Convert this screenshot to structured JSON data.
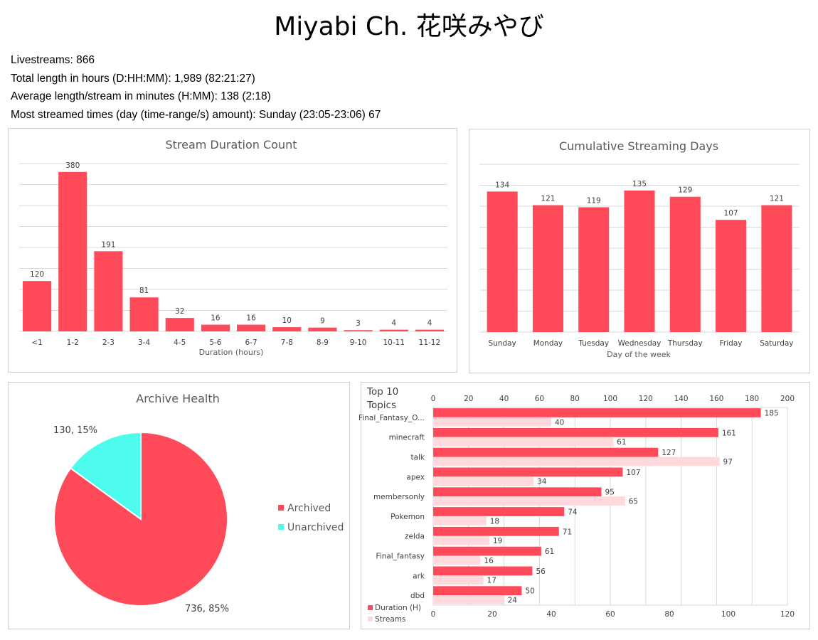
{
  "header": {
    "title": "Miyabi Ch. 花咲みやび"
  },
  "stats": [
    "Livestreams: 866",
    "Total length in hours (D:HH:MM): 1,989 (82:21:27)",
    "Average length/stream in minutes (H:MM): 138 (2:18)",
    "Most streamed times (day (time-range/s) amount): Sunday (23:05-23:06) 67"
  ],
  "colors": {
    "primary": "#ff4a5a",
    "light": "#ffd9dc",
    "cyan": "#4dfcec",
    "grid": "#d9d9d9"
  },
  "chart_data": [
    {
      "type": "bar",
      "title": "Stream Duration Count",
      "xlabel": "Duration (hours)",
      "ylabel": "",
      "categories": [
        "<1",
        "1-2",
        "2-3",
        "3-4",
        "4-5",
        "5-6",
        "6-7",
        "7-8",
        "8-9",
        "9-10",
        "10-11",
        "11-12"
      ],
      "values": [
        120,
        380,
        191,
        81,
        32,
        16,
        16,
        10,
        9,
        3,
        4,
        4
      ],
      "ylim": [
        0,
        400
      ],
      "grid": true
    },
    {
      "type": "bar",
      "title": "Cumulative Streaming Days",
      "xlabel": "Day of the week",
      "ylabel": "",
      "categories": [
        "Sunday",
        "Monday",
        "Tuesday",
        "Wednesday",
        "Thursday",
        "Friday",
        "Saturday"
      ],
      "values": [
        134,
        121,
        119,
        135,
        129,
        107,
        121
      ],
      "ylim": [
        0,
        160
      ],
      "grid": true
    },
    {
      "type": "pie",
      "title": "Archive Health",
      "labels": [
        "Archived",
        "Unarchived"
      ],
      "values": [
        736,
        130
      ],
      "percent_labels": [
        "736, 85%",
        "130, 15%"
      ],
      "legend": "right"
    },
    {
      "type": "bar",
      "orientation": "horizontal",
      "title": "Top 10 Topics",
      "categories": [
        "Final_Fantasy_O...",
        "minecraft",
        "talk",
        "apex",
        "membersonly",
        "Pokemon",
        "zelda",
        "Final_fantasy",
        "ark",
        "dbd"
      ],
      "series": [
        {
          "name": "Duration (H)",
          "values": [
            185,
            161,
            127,
            107,
            95,
            74,
            71,
            61,
            56,
            50
          ],
          "axis": "top",
          "xlim": [
            0,
            200
          ]
        },
        {
          "name": "Streams",
          "values": [
            40,
            61,
            97,
            34,
            65,
            18,
            19,
            16,
            17,
            24
          ],
          "axis": "bottom",
          "xlim": [
            0,
            120
          ]
        }
      ],
      "top_ticks": [
        "0",
        "20",
        "40",
        "60",
        "80",
        "100",
        "120",
        "140",
        "160",
        "180",
        "200"
      ],
      "bottom_ticks": [
        "0",
        "20",
        "40",
        "60",
        "80",
        "100",
        "120"
      ],
      "legend": "bottom-left",
      "grid": true
    }
  ]
}
